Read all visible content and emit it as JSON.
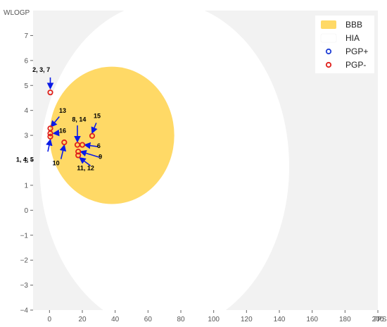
{
  "chart_data": {
    "type": "scatter",
    "xlabel": "TPS",
    "ylabel": "WLOGP",
    "xlim": [
      -10,
      200
    ],
    "ylim": [
      -4,
      8
    ],
    "x_ticks": [
      "0",
      "20",
      "40",
      "60",
      "80",
      "100",
      "120",
      "140",
      "160",
      "180",
      "200"
    ],
    "y_ticks": [
      "−4",
      "−3",
      "−2",
      "−1",
      "0",
      "1",
      "2",
      "3",
      "4",
      "5",
      "6",
      "7"
    ],
    "grid": false,
    "legend_position": "top-right",
    "regions": [
      {
        "name": "BBB",
        "color": "#ffd966",
        "center": [
          38,
          3.0
        ],
        "radii": [
          38,
          2.75
        ],
        "rotation_deg": 0
      },
      {
        "name": "HIA",
        "color": "#ffffff",
        "center": [
          70,
          1.75
        ],
        "radii": [
          76,
          6.6
        ],
        "rotation_deg": 0
      }
    ],
    "legend": [
      {
        "label": "BBB",
        "kind": "swatch",
        "color": "#ffd966"
      },
      {
        "label": "HIA",
        "kind": "swatch",
        "color": "#ffffff"
      },
      {
        "label": "PGP+",
        "kind": "marker",
        "color": "#1f3fd6"
      },
      {
        "label": "PGP-",
        "kind": "marker",
        "color": "#e0201b"
      }
    ],
    "series": [
      {
        "name": "PGP-",
        "color": "#e0201b",
        "points": [
          {
            "x": 0.5,
            "y": 4.72
          },
          {
            "x": 0.5,
            "y": 3.28
          },
          {
            "x": 0.5,
            "y": 3.08
          },
          {
            "x": 0.5,
            "y": 2.95
          },
          {
            "x": 9,
            "y": 2.72
          },
          {
            "x": 17,
            "y": 2.62
          },
          {
            "x": 20,
            "y": 2.62
          },
          {
            "x": 17.5,
            "y": 2.35
          },
          {
            "x": 17.5,
            "y": 2.2
          },
          {
            "x": 26,
            "y": 2.98
          }
        ]
      }
    ],
    "annotations": [
      {
        "text": "2, 3, 7",
        "label_at": [
          -5,
          5.55
        ],
        "arrow_from": [
          0.5,
          5.32
        ],
        "arrow_to": [
          0.5,
          4.88
        ]
      },
      {
        "text": "13",
        "label_at": [
          8,
          3.9
        ],
        "arrow_from": [
          6,
          3.75
        ],
        "arrow_to": [
          1,
          3.35
        ]
      },
      {
        "text": "16",
        "label_at": [
          8,
          3.1
        ],
        "arrow_from": [
          6,
          3.1
        ],
        "arrow_to": [
          2.5,
          3.08
        ]
      },
      {
        "text": "1, 4, 5",
        "label_at": [
          -15,
          1.95
        ],
        "arrow_from": [
          -1,
          2.35
        ],
        "arrow_to": [
          0.5,
          2.82
        ]
      },
      {
        "text": "10",
        "label_at": [
          4,
          1.8
        ],
        "arrow_from": [
          7,
          2.05
        ],
        "arrow_to": [
          9,
          2.6
        ]
      },
      {
        "text": "8, 14",
        "label_at": [
          18,
          3.55
        ],
        "arrow_from": [
          17,
          3.4
        ],
        "arrow_to": [
          17,
          2.75
        ]
      },
      {
        "text": "15",
        "label_at": [
          29,
          3.7
        ],
        "arrow_from": [
          28.5,
          3.5
        ],
        "arrow_to": [
          26,
          3.1
        ]
      },
      {
        "text": "6",
        "label_at": [
          30,
          2.5
        ],
        "arrow_from": [
          29.5,
          2.55
        ],
        "arrow_to": [
          21.5,
          2.62
        ]
      },
      {
        "text": "9",
        "label_at": [
          31,
          2.05
        ],
        "arrow_from": [
          30.5,
          2.12
        ],
        "arrow_to": [
          19,
          2.35
        ]
      },
      {
        "text": "11, 12",
        "label_at": [
          22,
          1.6
        ],
        "arrow_from": [
          25,
          1.78
        ],
        "arrow_to": [
          18.5,
          2.1
        ]
      }
    ]
  }
}
